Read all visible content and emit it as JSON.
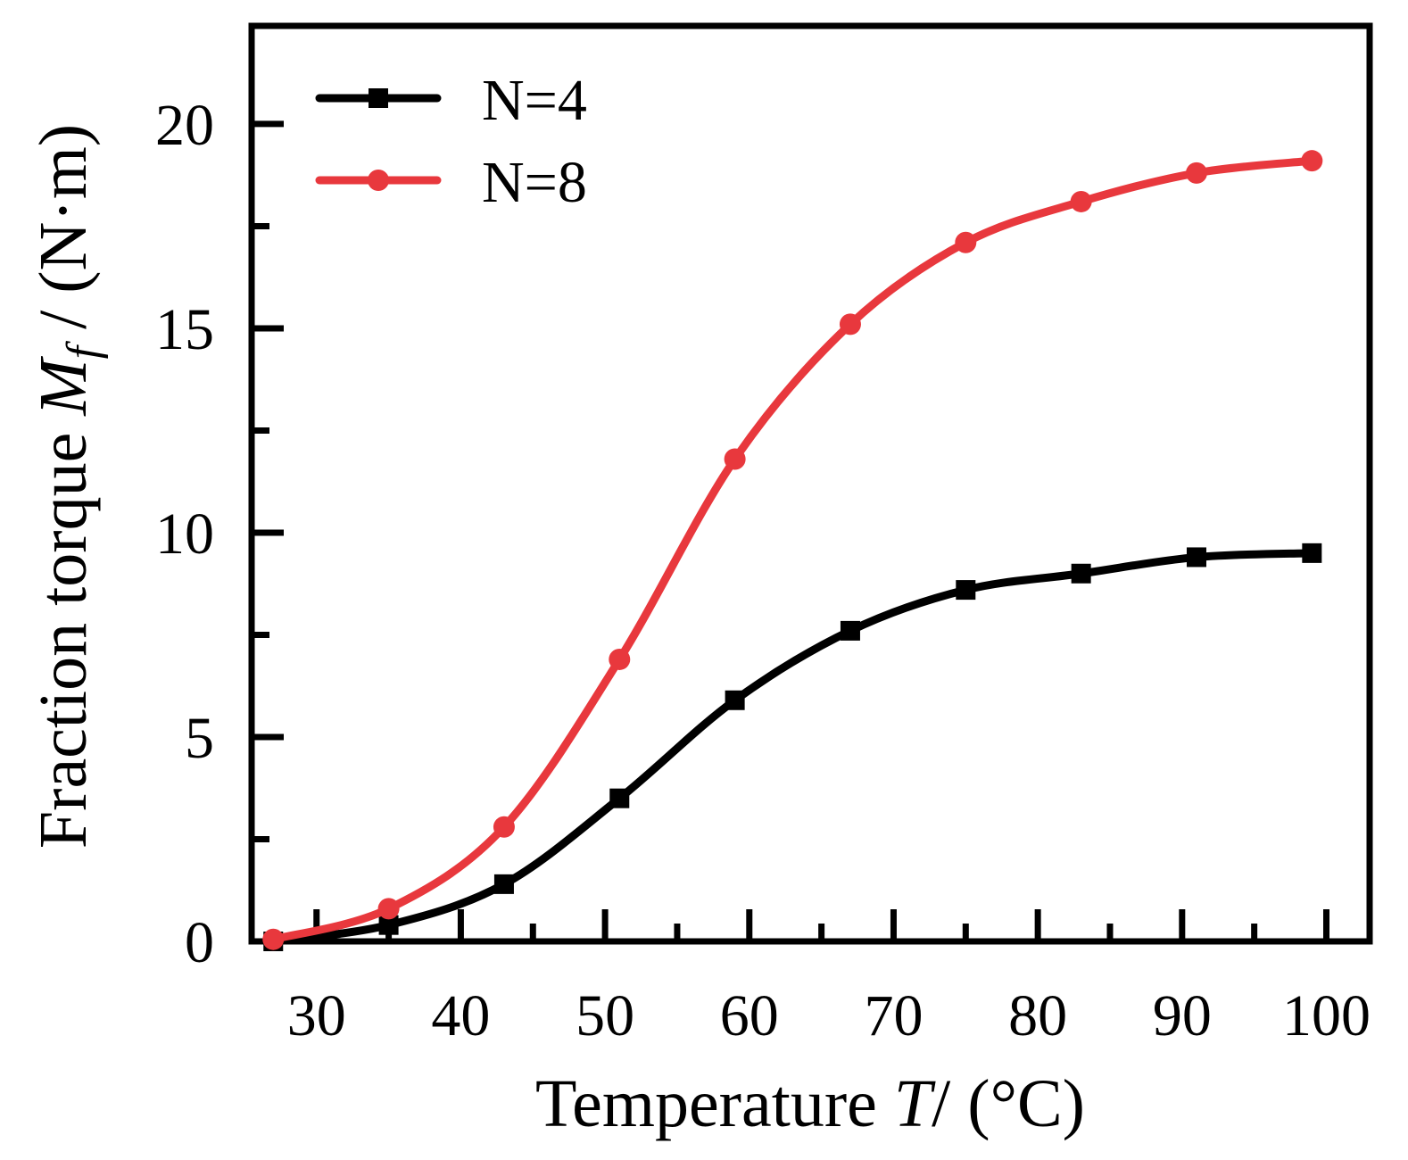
{
  "chart_data": {
    "type": "line",
    "xlabel": {
      "prefix": "Temperature ",
      "var": "T",
      "suffix": "/ (°C)"
    },
    "ylabel": {
      "prefix": "Fraction torque ",
      "var": "M",
      "sub": "f",
      "suffix": " / (N·m)"
    },
    "xlim": [
      25.5,
      103
    ],
    "ylim": [
      0,
      22.4
    ],
    "x_ticks": [
      30,
      40,
      50,
      60,
      70,
      80,
      90,
      100
    ],
    "x_minor_ticks": [
      35,
      45,
      55,
      65,
      75,
      85,
      95
    ],
    "y_ticks": [
      0,
      5,
      10,
      15,
      20
    ],
    "y_minor_ticks": [
      2.5,
      7.5,
      12.5,
      17.5
    ],
    "legend_position": "top-left",
    "series": [
      {
        "name": "N=4",
        "color": "#000000",
        "marker": "square",
        "x": [
          27,
          35,
          43,
          51,
          59,
          67,
          75,
          83,
          91,
          99
        ],
        "y": [
          0.0,
          0.4,
          1.4,
          3.5,
          5.9,
          7.6,
          8.6,
          9.0,
          9.4,
          9.5
        ]
      },
      {
        "name": "N=8",
        "color": "#e8383d",
        "marker": "circle",
        "x": [
          27,
          35,
          43,
          51,
          59,
          67,
          75,
          83,
          91,
          99
        ],
        "y": [
          0.05,
          0.8,
          2.8,
          6.9,
          11.8,
          15.1,
          17.1,
          18.1,
          18.8,
          19.1
        ]
      }
    ]
  }
}
